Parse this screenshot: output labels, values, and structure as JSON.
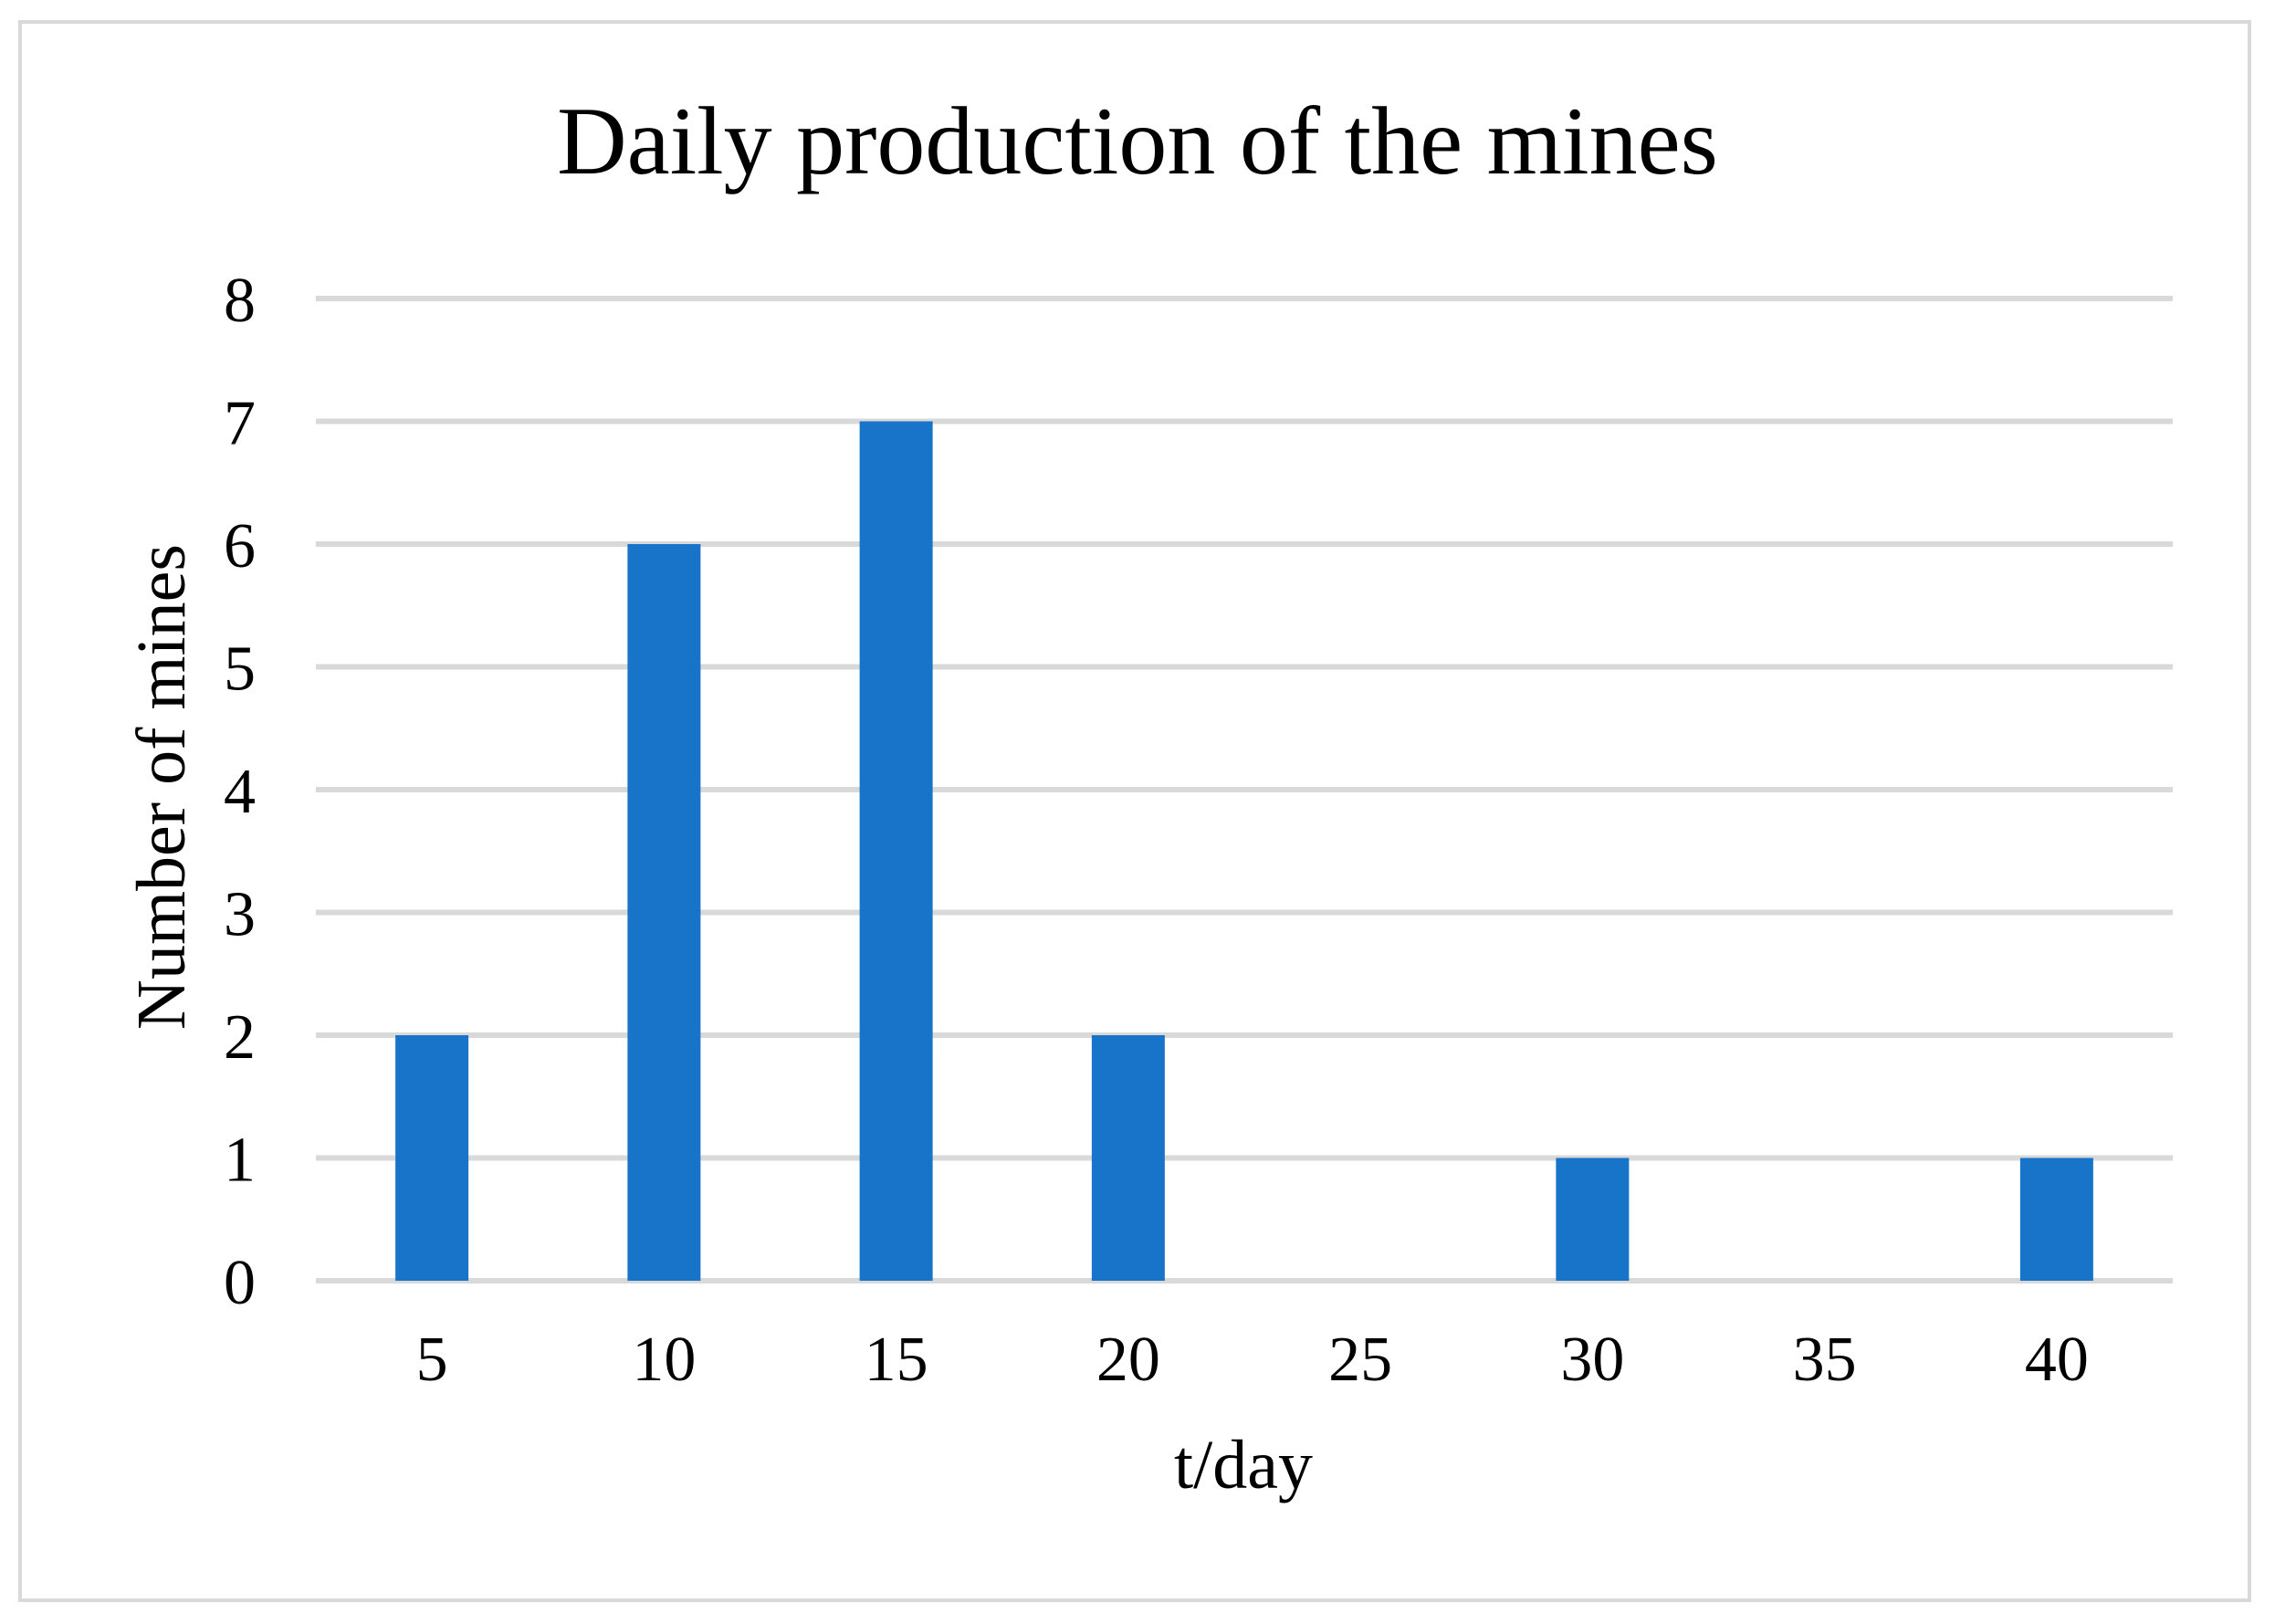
{
  "chart_data": {
    "type": "bar",
    "title": "Daily production of the mines",
    "xlabel": "t/day",
    "ylabel": "Number of mines",
    "categories": [
      "5",
      "10",
      "15",
      "20",
      "25",
      "30",
      "35",
      "40"
    ],
    "values": [
      2,
      6,
      7,
      2,
      0,
      1,
      0,
      1
    ],
    "ylim": [
      0,
      8
    ],
    "yticks": [
      0,
      1,
      2,
      3,
      4,
      5,
      6,
      7,
      8
    ],
    "grid": true,
    "legend": "none",
    "colors": {
      "bar": "#1874C8",
      "grid": "#d9d9d9",
      "border": "#d9d9d9",
      "text": "#000000"
    }
  }
}
